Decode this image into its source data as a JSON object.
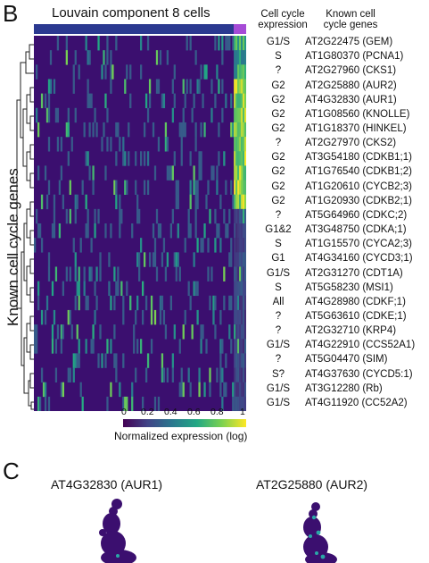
{
  "panel_b": {
    "letter": "B",
    "title": "Louvain component 8 cells",
    "y_label": "Known cell cycle genes",
    "col_head_expression": [
      "Cell cycle",
      "expression"
    ],
    "col_head_genes": [
      "Known cell",
      "cycle genes"
    ],
    "rows": [
      {
        "phase": "G1/S",
        "gene": "AT2G22475 (GEM)"
      },
      {
        "phase": "S",
        "gene": "AT1G80370 (PCNA1)"
      },
      {
        "phase": "?",
        "gene": "AT2G27960 (CKS1)"
      },
      {
        "phase": "G2",
        "gene": "AT2G25880 (AUR2)"
      },
      {
        "phase": "G2",
        "gene": "AT4G32830 (AUR1)"
      },
      {
        "phase": "G2",
        "gene": "AT1G08560 (KNOLLE)"
      },
      {
        "phase": "G2",
        "gene": "AT1G18370 (HINKEL)"
      },
      {
        "phase": "?",
        "gene": "AT2G27970 (CKS2)"
      },
      {
        "phase": "G2",
        "gene": "AT3G54180 (CDKB1;1)"
      },
      {
        "phase": "G2",
        "gene": "AT1G76540 (CDKB1;2)"
      },
      {
        "phase": "G2",
        "gene": "AT1G20610 (CYCB2;3)"
      },
      {
        "phase": "G2",
        "gene": "AT1G20930 (CDKB2;1)"
      },
      {
        "phase": "?",
        "gene": "AT5G64960 (CDKC;2)"
      },
      {
        "phase": "G1&2",
        "gene": "AT3G48750 (CDKA;1)"
      },
      {
        "phase": "S",
        "gene": "AT1G15570 (CYCA2;3)"
      },
      {
        "phase": "G1",
        "gene": "AT4G34160 (CYCD3;1)"
      },
      {
        "phase": "G1/S",
        "gene": "AT2G31270 (CDT1A)"
      },
      {
        "phase": "S",
        "gene": "AT5G58230 (MSI1)"
      },
      {
        "phase": "All",
        "gene": "AT4G28980 (CDKF;1)"
      },
      {
        "phase": "?",
        "gene": "AT5G63610 (CDKE;1)"
      },
      {
        "phase": "?",
        "gene": "AT2G32710 (KRP4)"
      },
      {
        "phase": "G1/S",
        "gene": "AT4G22910 (CCS52A1)"
      },
      {
        "phase": "?",
        "gene": "AT5G04470 (SIM)"
      },
      {
        "phase": "S?",
        "gene": "AT4G37630 (CYCD5:1)"
      },
      {
        "phase": "G1/S",
        "gene": "AT3G12280 (Rb)"
      },
      {
        "phase": "G1/S",
        "gene": "AT4G11920 (CC52A2)"
      }
    ],
    "colorbar": {
      "ticks": [
        "0",
        "0.2",
        "0.4",
        "0.6",
        "0.8",
        "1"
      ],
      "title": "Normalized expression (log)",
      "range": [
        0,
        1
      ]
    },
    "colors": {
      "top_bar_main": "#2b3990",
      "top_bar_end": "#a64bd6",
      "heatmap_bg": "#3b0f6f"
    }
  },
  "panel_c": {
    "letter": "C",
    "plot_titles": [
      "AT4G32830 (AUR1)",
      "AT2G25880 (AUR2)"
    ],
    "colors": {
      "cell": "#3b0f6f",
      "high": "#2aa7a7"
    }
  }
}
